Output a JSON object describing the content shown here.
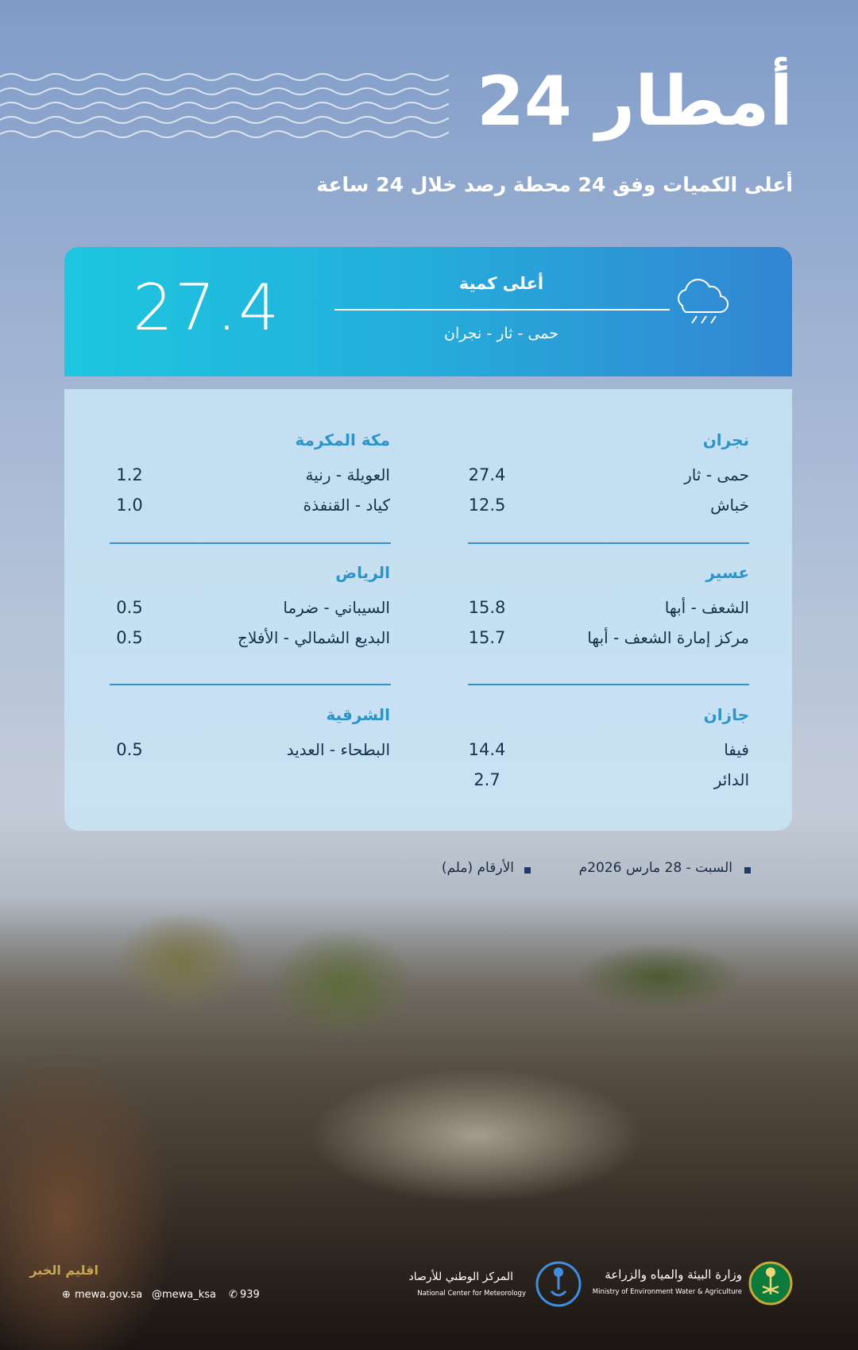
{
  "header": {
    "title": "أمطار 24",
    "subtitle": "أعلى الكميات وفق 24 محطة رصد خلال 24 ساعة"
  },
  "highlight": {
    "value": "27.4",
    "label": "أعلى كمية",
    "location": "حمى - ثار - نجران",
    "icon": "cloud-rain-icon"
  },
  "regions": [
    {
      "name": "نجران",
      "stations": [
        {
          "name": "حمى - ثار",
          "value": "27.4"
        },
        {
          "name": "خباش",
          "value": "12.5"
        }
      ]
    },
    {
      "name": "مكة المكرمة",
      "stations": [
        {
          "name": "العويلة - رنية",
          "value": "1.2"
        },
        {
          "name": "كياد - القنفذة",
          "value": "1.0"
        }
      ]
    },
    {
      "name": "عسير",
      "stations": [
        {
          "name": "الشعف - أبها",
          "value": "15.8"
        },
        {
          "name": "مركز إمارة الشعف - أبها",
          "value": "15.7"
        }
      ]
    },
    {
      "name": "الرياض",
      "stations": [
        {
          "name": "السيباني - ضرما",
          "value": "0.5"
        },
        {
          "name": "البديع الشمالي - الأفلاج",
          "value": "0.5"
        }
      ]
    },
    {
      "name": "جازان",
      "stations": [
        {
          "name": "فيفا",
          "value": "14.4"
        },
        {
          "name": "الدائر",
          "value": "2.7"
        }
      ]
    },
    {
      "name": "الشرقية",
      "stations": [
        {
          "name": "البطحاء - العديد",
          "value": "0.5"
        }
      ]
    }
  ],
  "footer_notes": {
    "date": "السبت - 28 مارس 2026م",
    "units": "الأرقام (ملم)"
  },
  "branding": {
    "ministry_ar": "وزارة البيئة والمياه والزراعة",
    "ministry_en": "Ministry of Environment Water & Agriculture",
    "ncm_ar": "المركز الوطني للأرصاد",
    "ncm_en": "National Center for Meteorology",
    "website": "mewa.gov.sa",
    "handle": "@mewa_ksa",
    "phone": "939",
    "watermark": "اقليم الخبر"
  },
  "colors": {
    "accent": "#2d94c8",
    "banner_start": "#1ec6df",
    "banner_end": "#3385d1"
  }
}
